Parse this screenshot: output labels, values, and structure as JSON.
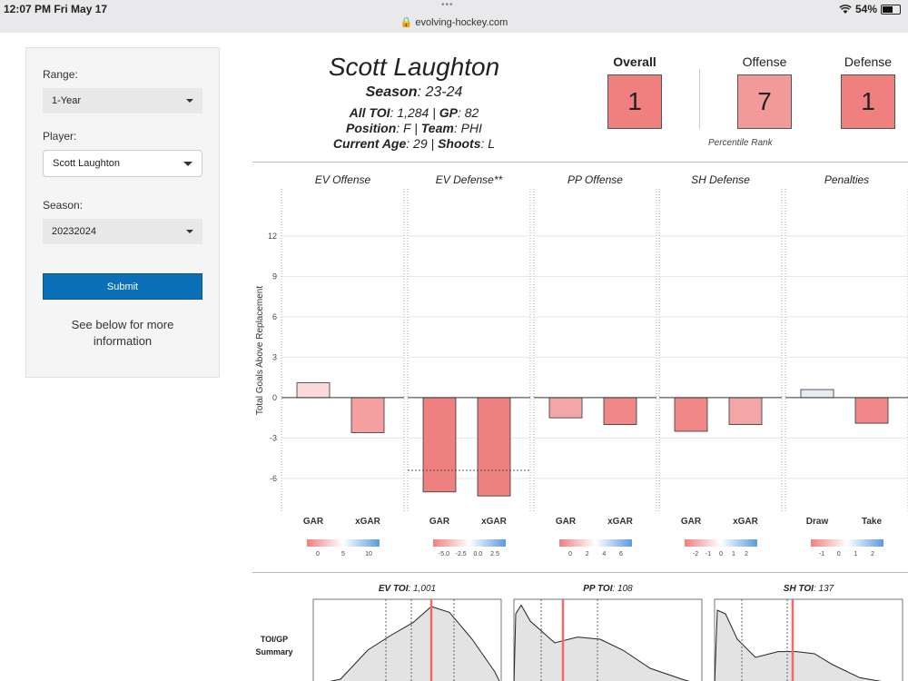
{
  "status": {
    "time": "12:07 PM  Fri May 17",
    "dots": "•••",
    "url": "🔒 evolving-hockey.com",
    "battery": "54%"
  },
  "sidebar": {
    "range_label": "Range:",
    "range_value": "1-Year",
    "player_label": "Player:",
    "player_value": "Scott Laughton",
    "season_label": "Season:",
    "season_value": "20232024",
    "submit_label": "Submit",
    "info_text": "See below for more information"
  },
  "player": {
    "name": "Scott Laughton",
    "season_label": "Season",
    "season": ": 23-24",
    "toi_label": "All TOI",
    "toi": ": 1,284 | ",
    "gp_label": "GP",
    "gp": ": 82",
    "position_label": "Position",
    "position": ": F | ",
    "team_label": "Team",
    "team": ": PHI",
    "age_label": "Current Age",
    "age": ": 29 | ",
    "shoots_label": "Shoots",
    "shoots": ": L"
  },
  "ranks": {
    "overall_label": "Overall",
    "overall": "1",
    "offense_label": "Offense",
    "offense": "7",
    "defense_label": "Defense",
    "defense": "1",
    "footnote": "Percentile Rank"
  },
  "chart_data": {
    "type": "bar",
    "ylabel": "Total Goals Above Replacement",
    "ylim": [
      -8.5,
      15.5
    ],
    "yticks": [
      12,
      9,
      6,
      3,
      0,
      -3,
      -6
    ],
    "panels": [
      {
        "title": "EV Offense",
        "categories": [
          "GAR",
          "xGAR"
        ],
        "values": [
          1.1,
          -2.6
        ],
        "colors": [
          "#fbd9d9",
          "#f4a0a0"
        ],
        "legend_ticks": [
          "0",
          "5",
          "10"
        ]
      },
      {
        "title": "EV Defense**",
        "categories": [
          "GAR",
          "xGAR"
        ],
        "values": [
          -7.0,
          -7.3
        ],
        "colors": [
          "#ef8080",
          "#ef8080"
        ],
        "ref_line": -5.4,
        "legend_ticks": [
          "-5.0",
          "-2.5",
          "0.0",
          "2.5"
        ]
      },
      {
        "title": "PP Offense",
        "categories": [
          "GAR",
          "xGAR"
        ],
        "values": [
          -1.5,
          -2.0
        ],
        "colors": [
          "#f4a6a6",
          "#f08888"
        ],
        "legend_ticks": [
          "0",
          "2",
          "4",
          "6"
        ]
      },
      {
        "title": "SH Defense",
        "categories": [
          "GAR",
          "xGAR"
        ],
        "values": [
          -2.5,
          -2.0
        ],
        "colors": [
          "#f08888",
          "#f4a6a6"
        ],
        "legend_ticks": [
          "-2",
          "-1",
          "0",
          "1",
          "2"
        ]
      },
      {
        "title": "Penalties",
        "categories": [
          "Draw",
          "Take"
        ],
        "values": [
          0.6,
          -1.9
        ],
        "colors": [
          "#e6ecf5",
          "#f08888"
        ],
        "legend_ticks": [
          "-1",
          "0",
          "1",
          "2"
        ]
      }
    ]
  },
  "toi_summary": {
    "label_line1": "TOI/GP",
    "label_line2": "Summary",
    "panels": [
      {
        "title": "EV TOI",
        "value": ": 1,001"
      },
      {
        "title": "PP TOI",
        "value": ": 108"
      },
      {
        "title": "SH TOI",
        "value": ": 137"
      }
    ],
    "colors": {
      "fill": "#e3e3e3",
      "marker": "#f06a6a"
    }
  }
}
